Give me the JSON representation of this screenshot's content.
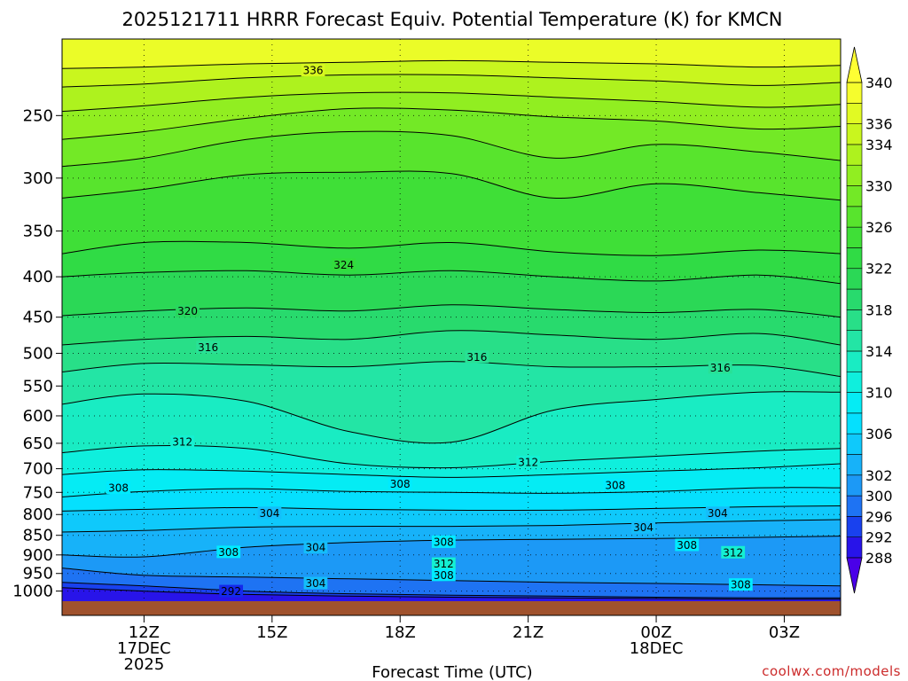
{
  "chart_data": {
    "type": "heatmap",
    "title": "2025121711 HRRR Forecast Equiv. Potential Temperature (K) for KMCN",
    "xlabel": "Forecast Time (UTC)",
    "ylabel": "",
    "credit": "coolwx.com/models",
    "x_unit": "hours since 2025-12-17 12Z",
    "xlim": [
      -3.2,
      27.2
    ],
    "ylim": [
      1030,
      200
    ],
    "y_scale": "log",
    "grid": true,
    "x_ticks": [
      {
        "hour": 0,
        "lines": [
          "12Z",
          "17DEC",
          "2025"
        ]
      },
      {
        "hour": 5,
        "lines": [
          "15Z"
        ]
      },
      {
        "hour": 10,
        "lines": [
          "18Z"
        ]
      },
      {
        "hour": 15,
        "lines": [
          "21Z"
        ]
      },
      {
        "hour": 20,
        "lines": [
          "00Z",
          "18DEC"
        ]
      },
      {
        "hour": 25,
        "lines": [
          "03Z"
        ]
      }
    ],
    "y_ticks": [
      250,
      300,
      350,
      400,
      450,
      500,
      550,
      600,
      650,
      700,
      750,
      800,
      850,
      900,
      950,
      1000
    ],
    "colorbar": {
      "levels": [
        288,
        292,
        296,
        300,
        302,
        304,
        306,
        308,
        310,
        312,
        314,
        316,
        318,
        320,
        322,
        324,
        326,
        328,
        330,
        332,
        334,
        336,
        338,
        340
      ],
      "labels": [
        288,
        292,
        296,
        300,
        302,
        306,
        310,
        314,
        318,
        322,
        326,
        330,
        334,
        336,
        340
      ],
      "min_color": "#4a00e8",
      "max_color": "#ffff33",
      "extend": "both"
    },
    "isotherms": [
      {
        "level": 336,
        "pressure": [
          218,
          217,
          215,
          214,
          213,
          214,
          215,
          217,
          216
        ]
      },
      {
        "level": 334,
        "pressure": [
          230,
          228,
          224,
          222,
          222,
          224,
          226,
          229,
          227
        ]
      },
      {
        "level": 332,
        "pressure": [
          247,
          243,
          237,
          234,
          234,
          237,
          240,
          244,
          242
        ]
      },
      {
        "level": 330,
        "pressure": [
          268,
          262,
          252,
          245,
          246,
          251,
          254,
          260,
          258
        ]
      },
      {
        "level": 328,
        "pressure": [
          290,
          283,
          268,
          262,
          265,
          283,
          272,
          278,
          285
        ]
      },
      {
        "level": 326,
        "pressure": [
          318,
          310,
          297,
          295,
          296,
          318,
          305,
          313,
          320
        ]
      },
      {
        "level": 324,
        "pressure": [
          374,
          362,
          362,
          368,
          362,
          372,
          376,
          370,
          374
        ]
      },
      {
        "level": 322,
        "pressure": [
          400,
          395,
          393,
          398,
          393,
          400,
          405,
          398,
          408
        ]
      },
      {
        "level": 320,
        "pressure": [
          448,
          442,
          438,
          442,
          434,
          440,
          444,
          440,
          450
        ]
      },
      {
        "level": 318,
        "pressure": [
          488,
          480,
          476,
          480,
          468,
          474,
          480,
          472,
          488
        ]
      },
      {
        "level": 316,
        "pressure": [
          528,
          515,
          517,
          520,
          512,
          520,
          520,
          518,
          535
        ]
      },
      {
        "level": 314,
        "pressure": [
          580,
          563,
          575,
          628,
          648,
          590,
          572,
          560,
          560
        ]
      },
      {
        "level": 312,
        "pressure": [
          668,
          655,
          660,
          690,
          698,
          685,
          675,
          665,
          660
        ]
      },
      {
        "level": 310,
        "pressure": [
          712,
          702,
          705,
          712,
          718,
          712,
          705,
          698,
          690
        ]
      },
      {
        "level": 308,
        "pressure": [
          760,
          748,
          742,
          748,
          750,
          752,
          748,
          740,
          740
        ]
      },
      {
        "level": 306,
        "pressure": [
          792,
          788,
          784,
          788,
          790,
          790,
          786,
          782,
          780
        ]
      },
      {
        "level": 304,
        "pressure": [
          842,
          838,
          830,
          828,
          828,
          826,
          820,
          815,
          812
        ]
      },
      {
        "level": 302,
        "pressure": [
          900,
          905,
          880,
          868,
          862,
          860,
          858,
          855,
          852
        ]
      },
      {
        "level": 300,
        "pressure": [
          935,
          955,
          960,
          965,
          970,
          975,
          978,
          982,
          985
        ]
      },
      {
        "level": 296,
        "pressure": [
          975,
          985,
          1000,
          1008,
          1012,
          1015,
          1018,
          1020,
          1020
        ]
      },
      {
        "level": 292,
        "pressure": [
          990,
          1000,
          1010,
          1015,
          1018,
          1020,
          1022,
          1024,
          1024
        ]
      }
    ],
    "isotherm_x_hours": [
      -3.2,
      0,
      4,
      8,
      12,
      16,
      20,
      24,
      27.2
    ],
    "line_labels": [
      {
        "text": "336",
        "hour": 6.6,
        "pressure": 219
      },
      {
        "text": "324",
        "hour": 7.8,
        "pressure": 386
      },
      {
        "text": "320",
        "hour": 1.7,
        "pressure": 442
      },
      {
        "text": "316",
        "hour": 2.5,
        "pressure": 491
      },
      {
        "text": "316",
        "hour": 13.0,
        "pressure": 505
      },
      {
        "text": "316",
        "hour": 22.5,
        "pressure": 521
      },
      {
        "text": "312",
        "hour": 1.5,
        "pressure": 647
      },
      {
        "text": "312",
        "hour": 15.0,
        "pressure": 686
      },
      {
        "text": "308",
        "hour": -1.0,
        "pressure": 740
      },
      {
        "text": "308",
        "hour": 10.0,
        "pressure": 731
      },
      {
        "text": "308",
        "hour": 18.4,
        "pressure": 734
      },
      {
        "text": "304",
        "hour": 4.9,
        "pressure": 796
      },
      {
        "text": "304",
        "hour": 22.4,
        "pressure": 796
      },
      {
        "text": "304",
        "hour": 19.5,
        "pressure": 830
      },
      {
        "text": "308",
        "hour": 11.7,
        "pressure": 866
      },
      {
        "text": "308",
        "hour": 21.2,
        "pressure": 874
      },
      {
        "text": "304",
        "hour": 6.7,
        "pressure": 880
      },
      {
        "text": "308",
        "hour": 3.3,
        "pressure": 892
      },
      {
        "text": "312",
        "hour": 23.0,
        "pressure": 893
      },
      {
        "text": "312",
        "hour": 11.7,
        "pressure": 923
      },
      {
        "text": "308",
        "hour": 11.7,
        "pressure": 954
      },
      {
        "text": "304",
        "hour": 6.7,
        "pressure": 977
      },
      {
        "text": "308",
        "hour": 23.3,
        "pressure": 981
      },
      {
        "text": "292",
        "hour": 3.4,
        "pressure": 1000
      }
    ],
    "ground_color": "#a0522d"
  }
}
